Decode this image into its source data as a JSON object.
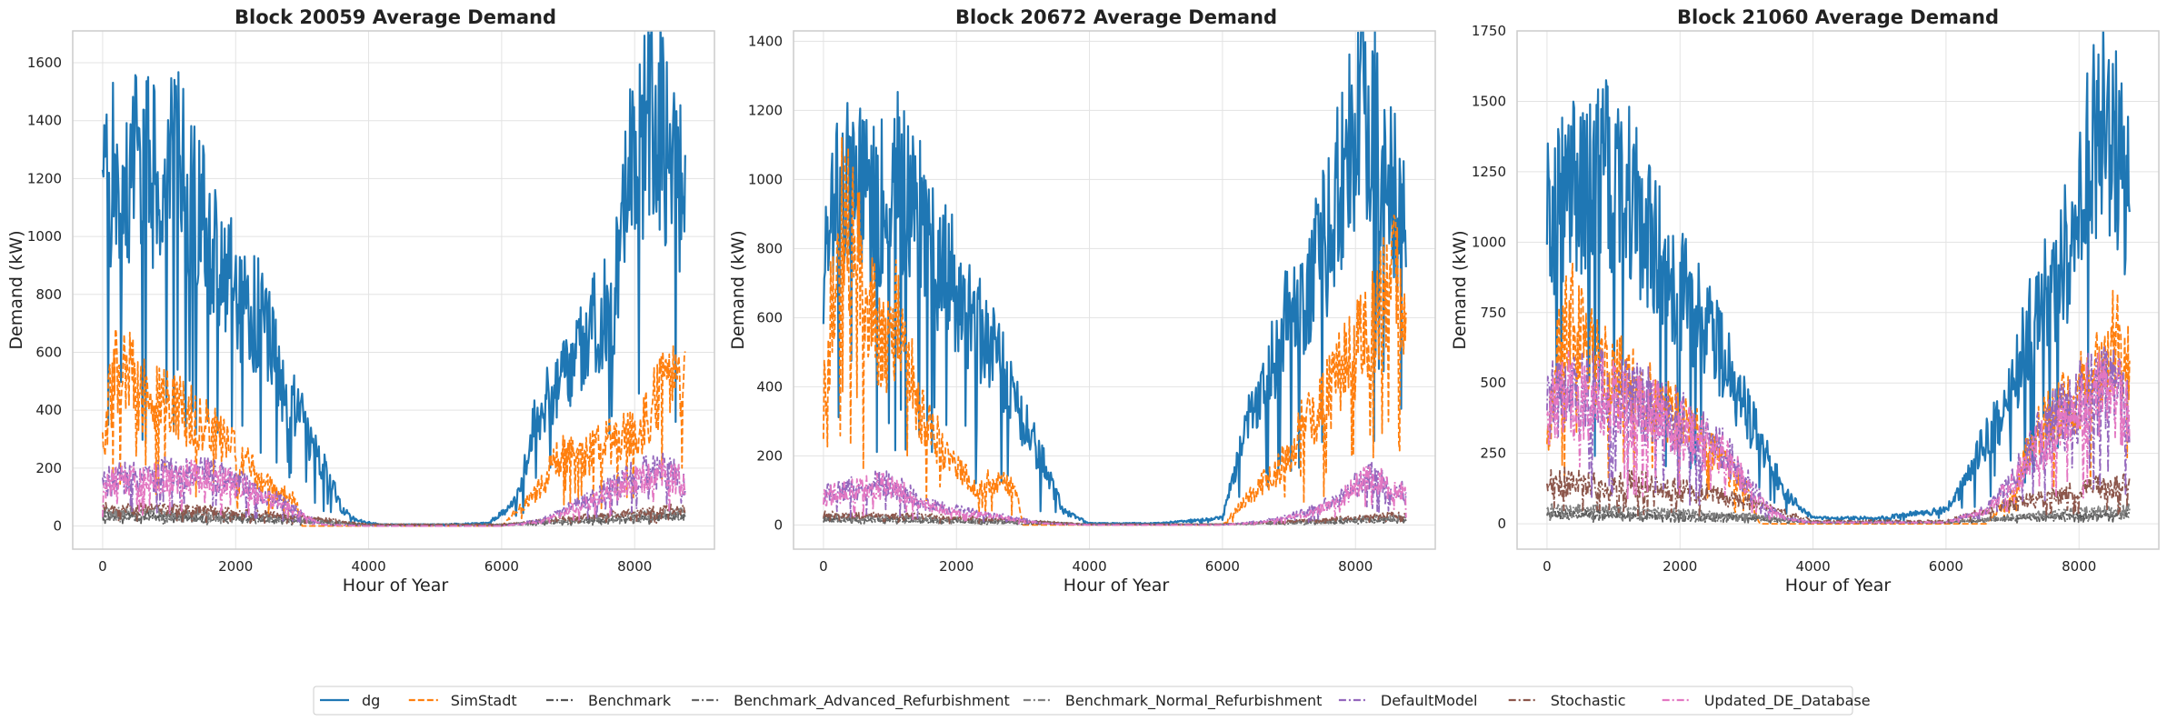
{
  "chart_data": [
    {
      "type": "line",
      "title": "Block 20059 Average Demand",
      "xlabel": "Hour of Year",
      "ylabel": "Demand (kW)",
      "xlim": [
        -450,
        9200
      ],
      "ylim": [
        -80,
        1710
      ],
      "xticks": [
        0,
        2000,
        4000,
        6000,
        8000
      ],
      "yticks": [
        0,
        200,
        400,
        600,
        800,
        1000,
        1200,
        1400,
        1600
      ],
      "grid": true,
      "series": [
        {
          "name": "dg",
          "x": [
            0,
            300,
            600,
            900,
            1200,
            1500,
            1800,
            2100,
            2400,
            2700,
            3000,
            3300,
            3600,
            3800,
            4200,
            5000,
            5800,
            6200,
            6500,
            6800,
            7100,
            7400,
            7700,
            8000,
            8300,
            8500,
            8760
          ],
          "y": [
            1150,
            1250,
            1230,
            1200,
            1250,
            1050,
            900,
            760,
            720,
            500,
            360,
            220,
            60,
            20,
            5,
            5,
            10,
            80,
            350,
            480,
            560,
            700,
            800,
            1300,
            1450,
            1250,
            1150
          ]
        },
        {
          "name": "SimStadt",
          "x": [
            0,
            200,
            400,
            600,
            900,
            1200,
            1500,
            1800,
            2100,
            2400,
            2700,
            2900,
            3000,
            6000,
            6600,
            6900,
            7200,
            7500,
            7800,
            8100,
            8400,
            8600,
            8760
          ],
          "y": [
            300,
            560,
            520,
            450,
            430,
            400,
            360,
            300,
            230,
            150,
            110,
            90,
            0,
            0,
            140,
            260,
            230,
            280,
            300,
            350,
            480,
            520,
            470
          ]
        },
        {
          "name": "Benchmark",
          "x": [
            0,
            1500,
            3000,
            4000,
            6000,
            7200,
            8760
          ],
          "y": [
            40,
            35,
            20,
            5,
            5,
            20,
            40
          ]
        },
        {
          "name": "Benchmark_Advanced_Refurbishment",
          "x": [
            0,
            1500,
            3000,
            4000,
            6000,
            7200,
            8760
          ],
          "y": [
            30,
            25,
            15,
            3,
            3,
            15,
            30
          ]
        },
        {
          "name": "Benchmark_Normal_Refurbishment",
          "x": [
            0,
            1500,
            3000,
            4000,
            6000,
            7200,
            8760
          ],
          "y": [
            50,
            45,
            25,
            5,
            5,
            25,
            50
          ]
        },
        {
          "name": "DefaultModel",
          "x": [
            0,
            300,
            600,
            900,
            1200,
            1500,
            1800,
            2100,
            2400,
            2700,
            3000,
            3300,
            4000,
            6000,
            6600,
            7000,
            7400,
            7800,
            8100,
            8400,
            8760
          ],
          "y": [
            150,
            170,
            160,
            180,
            175,
            185,
            170,
            140,
            110,
            80,
            40,
            5,
            0,
            0,
            20,
            60,
            100,
            150,
            180,
            190,
            160
          ]
        },
        {
          "name": "Stochastic",
          "x": [
            0,
            1500,
            3000,
            4000,
            6000,
            7200,
            8760
          ],
          "y": [
            60,
            55,
            30,
            5,
            5,
            30,
            60
          ]
        },
        {
          "name": "Updated_DE_Database",
          "x": [
            0,
            300,
            600,
            900,
            1200,
            1500,
            1800,
            2100,
            2400,
            2700,
            3000,
            3300,
            4000,
            6000,
            6600,
            7000,
            7400,
            7800,
            8100,
            8400,
            8760
          ],
          "y": [
            140,
            160,
            150,
            170,
            165,
            175,
            160,
            130,
            100,
            70,
            35,
            5,
            0,
            0,
            15,
            55,
            90,
            140,
            170,
            180,
            150
          ]
        }
      ]
    },
    {
      "type": "line",
      "title": "Block 20672 Average Demand",
      "xlabel": "Hour of Year",
      "ylabel": "Demand (kW)",
      "xlim": [
        -450,
        9200
      ],
      "ylim": [
        -70,
        1430
      ],
      "xticks": [
        0,
        2000,
        4000,
        6000,
        8000
      ],
      "yticks": [
        0,
        200,
        400,
        600,
        800,
        1000,
        1200,
        1400
      ],
      "grid": true,
      "series": [
        {
          "name": "dg",
          "x": [
            0,
            300,
            600,
            900,
            1200,
            1500,
            1800,
            2100,
            2400,
            2700,
            3000,
            3300,
            3600,
            4000,
            5000,
            6000,
            6400,
            6700,
            7000,
            7300,
            7600,
            7900,
            8200,
            8500,
            8760
          ],
          "y": [
            800,
            1000,
            960,
            950,
            1000,
            850,
            750,
            650,
            550,
            450,
            300,
            180,
            40,
            5,
            5,
            20,
            300,
            460,
            600,
            700,
            850,
            1100,
            1200,
            1000,
            850
          ]
        },
        {
          "name": "SimStadt",
          "x": [
            0,
            150,
            300,
            500,
            700,
            900,
            1100,
            1300,
            1500,
            1700,
            1900,
            2100,
            2300,
            2500,
            2700,
            2900,
            3000,
            6000,
            6600,
            6800,
            7000,
            7200,
            7400,
            7600,
            7800,
            8000,
            8200,
            8400,
            8600,
            8760
          ],
          "y": [
            350,
            700,
            900,
            800,
            650,
            500,
            600,
            450,
            300,
            250,
            180,
            150,
            90,
            130,
            120,
            100,
            0,
            0,
            120,
            150,
            200,
            300,
            320,
            380,
            450,
            500,
            550,
            650,
            700,
            600
          ]
        },
        {
          "name": "Benchmark",
          "x": [
            0,
            1500,
            3000,
            4000,
            6000,
            7200,
            8760
          ],
          "y": [
            20,
            15,
            10,
            2,
            2,
            10,
            20
          ]
        },
        {
          "name": "Benchmark_Advanced_Refurbishment",
          "x": [
            0,
            1500,
            3000,
            4000,
            6000,
            7200,
            8760
          ],
          "y": [
            15,
            10,
            5,
            2,
            2,
            5,
            15
          ]
        },
        {
          "name": "Benchmark_Normal_Refurbishment",
          "x": [
            0,
            1500,
            3000,
            4000,
            6000,
            7200,
            8760
          ],
          "y": [
            25,
            20,
            10,
            2,
            2,
            10,
            25
          ]
        },
        {
          "name": "DefaultModel",
          "x": [
            0,
            300,
            600,
            900,
            1200,
            1500,
            1800,
            2100,
            2400,
            2700,
            3000,
            3300,
            4000,
            6000,
            6600,
            7000,
            7400,
            7800,
            8000,
            8300,
            8500,
            8760
          ],
          "y": [
            90,
            100,
            110,
            120,
            100,
            60,
            50,
            40,
            30,
            25,
            15,
            5,
            0,
            0,
            10,
            25,
            45,
            80,
            120,
            140,
            110,
            90
          ]
        },
        {
          "name": "Stochastic",
          "x": [
            0,
            1500,
            3000,
            4000,
            6000,
            7200,
            8760
          ],
          "y": [
            30,
            25,
            12,
            2,
            2,
            12,
            30
          ]
        },
        {
          "name": "Updated_DE_Database",
          "x": [
            0,
            300,
            600,
            900,
            1200,
            1500,
            1800,
            2100,
            2400,
            2700,
            3000,
            3300,
            4000,
            6000,
            6600,
            7000,
            7400,
            7800,
            8000,
            8300,
            8500,
            8760
          ],
          "y": [
            85,
            95,
            105,
            115,
            95,
            55,
            45,
            35,
            28,
            22,
            12,
            4,
            0,
            0,
            8,
            22,
            40,
            75,
            115,
            135,
            105,
            85
          ]
        }
      ]
    },
    {
      "type": "line",
      "title": "Block 21060 Average Demand",
      "xlabel": "Hour of Year",
      "ylabel": "Demand (kW)",
      "xlim": [
        -450,
        9200
      ],
      "ylim": [
        -90,
        1750
      ],
      "xticks": [
        0,
        2000,
        4000,
        6000,
        8000
      ],
      "yticks": [
        0,
        250,
        500,
        750,
        1000,
        1250,
        1500,
        1750
      ],
      "grid": true,
      "series": [
        {
          "name": "dg",
          "x": [
            0,
            300,
            600,
            900,
            1200,
            1500,
            1800,
            2100,
            2400,
            2700,
            3000,
            3300,
            3600,
            4000,
            5000,
            6000,
            6300,
            6600,
            6900,
            7200,
            7500,
            7800,
            8100,
            8400,
            8600,
            8760
          ],
          "y": [
            1050,
            1200,
            1150,
            1250,
            1200,
            1050,
            900,
            800,
            700,
            550,
            400,
            250,
            100,
            20,
            20,
            50,
            150,
            300,
            400,
            650,
            800,
            950,
            1250,
            1450,
            1300,
            1150
          ]
        },
        {
          "name": "SimStadt",
          "x": [
            0,
            200,
            400,
            600,
            900,
            1200,
            1500,
            1800,
            2100,
            2400,
            2700,
            3000,
            3200,
            6600,
            7000,
            7300,
            7600,
            7900,
            8200,
            8500,
            8760
          ],
          "y": [
            300,
            650,
            750,
            600,
            550,
            500,
            450,
            400,
            350,
            300,
            200,
            120,
            0,
            0,
            100,
            300,
            380,
            450,
            500,
            650,
            600
          ]
        },
        {
          "name": "Benchmark",
          "x": [
            0,
            1500,
            3000,
            4000,
            6000,
            7200,
            8760
          ],
          "y": [
            40,
            35,
            25,
            5,
            5,
            25,
            40
          ]
        },
        {
          "name": "Benchmark_Advanced_Refurbishment",
          "x": [
            0,
            1500,
            3000,
            4000,
            6000,
            7200,
            8760
          ],
          "y": [
            30,
            25,
            20,
            5,
            5,
            20,
            30
          ]
        },
        {
          "name": "Benchmark_Normal_Refurbishment",
          "x": [
            0,
            1500,
            3000,
            4000,
            6000,
            7200,
            8760
          ],
          "y": [
            55,
            45,
            30,
            5,
            5,
            30,
            55
          ]
        },
        {
          "name": "DefaultModel",
          "x": [
            0,
            300,
            600,
            900,
            1200,
            1500,
            1800,
            2100,
            2400,
            2700,
            3000,
            3300,
            3600,
            4000,
            6000,
            6600,
            7000,
            7400,
            7800,
            8100,
            8400,
            8600,
            8760
          ],
          "y": [
            420,
            480,
            450,
            470,
            430,
            420,
            380,
            340,
            300,
            250,
            150,
            60,
            20,
            5,
            5,
            50,
            150,
            300,
            400,
            450,
            480,
            460,
            420
          ]
        },
        {
          "name": "Stochastic",
          "x": [
            0,
            1500,
            3000,
            4000,
            6000,
            7200,
            8760
          ],
          "y": [
            150,
            140,
            80,
            10,
            10,
            80,
            150
          ]
        },
        {
          "name": "Updated_DE_Database",
          "x": [
            0,
            300,
            600,
            900,
            1200,
            1500,
            1800,
            2100,
            2400,
            2700,
            3000,
            3300,
            3600,
            4000,
            6000,
            6600,
            7000,
            7400,
            7800,
            8100,
            8400,
            8600,
            8760
          ],
          "y": [
            400,
            460,
            430,
            450,
            410,
            400,
            360,
            320,
            280,
            230,
            140,
            55,
            18,
            5,
            5,
            45,
            140,
            280,
            380,
            430,
            460,
            440,
            400
          ]
        }
      ]
    }
  ],
  "legend": {
    "placement": "bottom-center",
    "entries": [
      "dg",
      "SimStadt",
      "Benchmark",
      "Benchmark_Advanced_Refurbishment",
      "Benchmark_Normal_Refurbishment",
      "DefaultModel",
      "Stochastic",
      "Updated_DE_Database"
    ]
  },
  "colors": {
    "dg": "#1f77b4",
    "SimStadt": "#ff7f0e",
    "Benchmark": "#555555",
    "Benchmark_Advanced_Refurbishment": "#666666",
    "Benchmark_Normal_Refurbishment": "#808080",
    "DefaultModel": "#9467bd",
    "Stochastic": "#8c564b",
    "Updated_DE_Database": "#e377c2",
    "grid": "#e3e3e3",
    "spine": "#cccccc"
  },
  "linestyles": {
    "dg": "solid",
    "SimStadt": "dashed",
    "Benchmark": "dashdot",
    "Benchmark_Advanced_Refurbishment": "dashdot",
    "Benchmark_Normal_Refurbishment": "dashdot",
    "DefaultModel": "dashdot",
    "Stochastic": "dashdot",
    "Updated_DE_Database": "dashdot"
  }
}
